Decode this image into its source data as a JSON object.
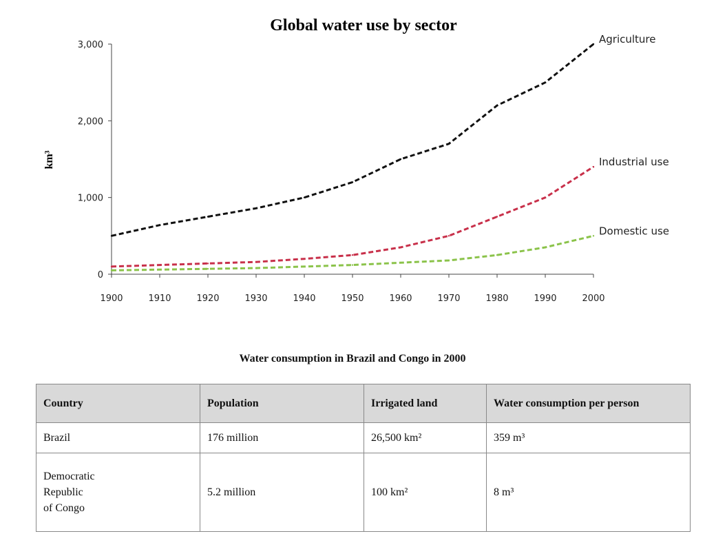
{
  "chart_data": [
    {
      "type": "line",
      "title": "Global water use by sector",
      "ylabel": "km³",
      "xlabel": "",
      "x": [
        1900,
        1910,
        1920,
        1930,
        1940,
        1950,
        1960,
        1970,
        1980,
        1990,
        2000
      ],
      "xlim": [
        1900,
        2000
      ],
      "ylim": [
        0,
        3000
      ],
      "yticks": [
        "0",
        "1,000",
        "2,000",
        "3,000"
      ],
      "xticks": [
        "1900",
        "1910",
        "1920",
        "1930",
        "1940",
        "1950",
        "1960",
        "1970",
        "1980",
        "1990",
        "2000"
      ],
      "grid": false,
      "series": [
        {
          "name": "Agriculture",
          "color": "#111111",
          "values": [
            500,
            640,
            750,
            860,
            1000,
            1200,
            1500,
            1700,
            2200,
            2500,
            3000
          ]
        },
        {
          "name": "Industrial use",
          "color": "#c8304a",
          "values": [
            100,
            120,
            140,
            160,
            200,
            250,
            350,
            500,
            750,
            1000,
            1400
          ]
        },
        {
          "name": "Domestic use",
          "color": "#8bc34a",
          "values": [
            50,
            60,
            70,
            80,
            100,
            120,
            150,
            180,
            250,
            350,
            500
          ]
        }
      ]
    },
    {
      "type": "table",
      "title": "Water consumption in Brazil and Congo in 2000",
      "columns": [
        "Country",
        "Population",
        "Irrigated land",
        "Water consumption per person"
      ],
      "rows": [
        {
          "country": "Brazil",
          "population": "176 million",
          "irrigated": "26,500 km²",
          "consumption": "359 m³"
        },
        {
          "country": [
            "Democratic",
            "Republic",
            "of Congo"
          ],
          "population": "5.2 million",
          "irrigated": "100 km²",
          "consumption": "8 m³"
        }
      ]
    }
  ]
}
